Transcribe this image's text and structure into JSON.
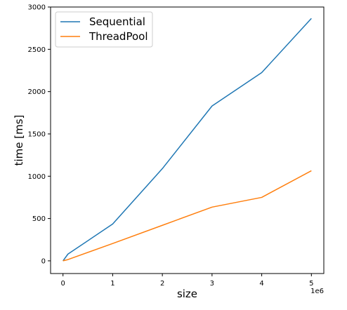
{
  "chart_data": {
    "type": "line",
    "title": "",
    "xlabel": "size",
    "ylabel": "time [ms]",
    "x_scale_label": "1e6",
    "xlim": [
      -0.25,
      5.25
    ],
    "ylim": [
      -150,
      3000
    ],
    "xticks": [
      0,
      1,
      2,
      3,
      4,
      5
    ],
    "xtick_labels": [
      "0",
      "1",
      "2",
      "3",
      "4",
      "5"
    ],
    "yticks": [
      0,
      500,
      1000,
      1500,
      2000,
      2500,
      3000
    ],
    "ytick_labels": [
      "0",
      "500",
      "1000",
      "1500",
      "2000",
      "2500",
      "3000"
    ],
    "grid": false,
    "legend_position": "top-left",
    "series": [
      {
        "name": "Sequential",
        "color": "#1f77b4",
        "x": [
          0,
          0.1,
          1,
          2,
          3,
          4,
          5
        ],
        "y": [
          0,
          80,
          435,
          1090,
          1830,
          2225,
          2865
        ]
      },
      {
        "name": "ThreadPool",
        "color": "#ff7f0e",
        "x": [
          0,
          0.1,
          1,
          2,
          3,
          4,
          5
        ],
        "y": [
          0,
          15,
          205,
          420,
          635,
          750,
          1065
        ]
      }
    ]
  }
}
